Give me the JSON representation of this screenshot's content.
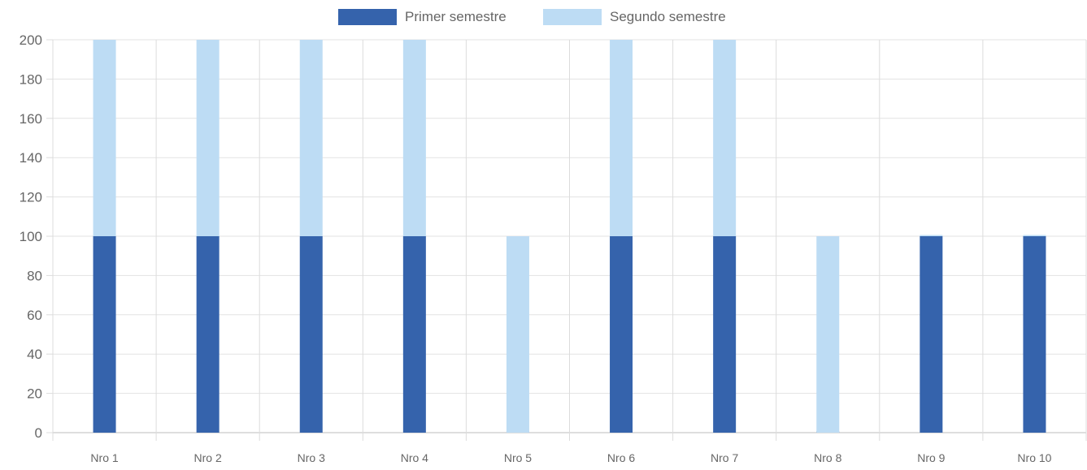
{
  "chart_data": {
    "type": "bar",
    "stacked": true,
    "title": "",
    "xlabel": "",
    "ylabel": "",
    "categories": [
      "Nro 1",
      "Nro 2",
      "Nro 3",
      "Nro 4",
      "Nro 5",
      "Nro 6",
      "Nro 7",
      "Nro 8",
      "Nro 9",
      "Nro 10"
    ],
    "series": [
      {
        "name": "Primer semestre",
        "color": "#3563ac",
        "values": [
          100,
          100,
          100,
          100,
          0,
          100,
          100,
          0,
          100,
          100
        ]
      },
      {
        "name": "Segundo semestre",
        "color": "#bddcf4",
        "values": [
          100,
          100,
          100,
          100,
          100,
          100,
          100,
          100,
          0,
          0
        ]
      }
    ],
    "ylim": [
      0,
      200
    ],
    "yticks": [
      "0",
      "20",
      "40",
      "60",
      "80",
      "100",
      "120",
      "140",
      "160",
      "180",
      "200"
    ],
    "grid": true,
    "legend_position": "top-center"
  }
}
